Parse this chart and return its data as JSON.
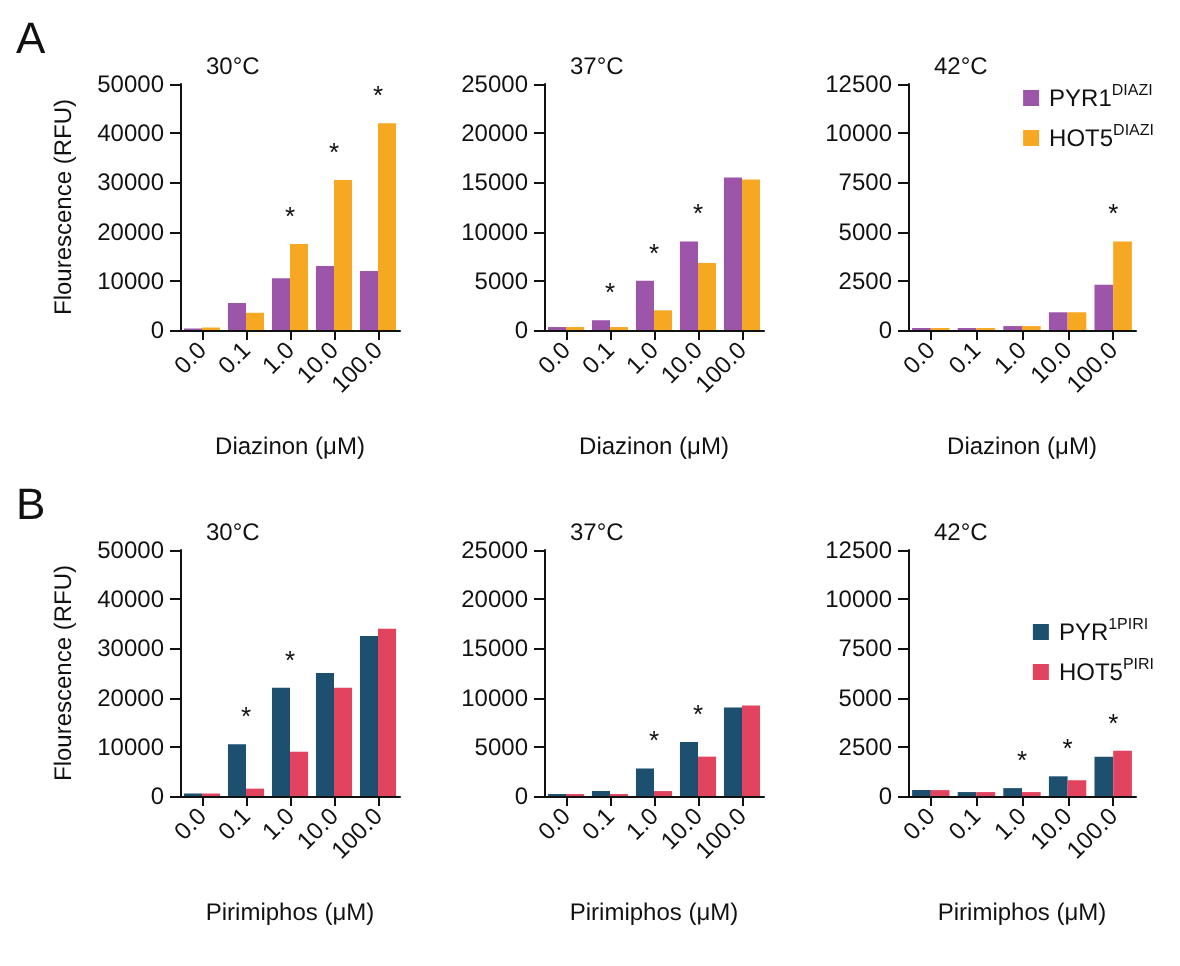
{
  "chart_data": [
    {
      "type": "bar",
      "title": "30°C",
      "annotations": [
        "A",
        {
          "text": "*",
          "x": "1.0",
          "y": 17500
        },
        {
          "text": "*",
          "x": "10.0",
          "y": 30500
        },
        {
          "text": "*",
          "x": "100.0",
          "y": 42000
        }
      ],
      "categories": [
        "0.0",
        "0.1",
        "1.0",
        "10.0",
        "100.0"
      ],
      "xlabel": "Diazinon (μM)",
      "ylabel": "Flourescence (RFU)",
      "ylim": [
        0,
        50000
      ],
      "yticks": [
        0,
        10000,
        20000,
        30000,
        40000,
        50000
      ],
      "grid": false,
      "legend": false,
      "series": [
        {
          "color": "#9c55a8",
          "values": [
            300,
            5500,
            10500,
            13000,
            12000
          ]
        },
        {
          "color": "#f7a823",
          "values": [
            500,
            3500,
            17500,
            30500,
            42000
          ]
        }
      ]
    },
    {
      "type": "bar",
      "title": "37°C",
      "annotations": [
        {
          "text": "*",
          "x": "0.1",
          "y": 1000
        },
        {
          "text": "*",
          "x": "1.0",
          "y": 5000
        },
        {
          "text": "*",
          "x": "10.0",
          "y": 9000
        }
      ],
      "categories": [
        "0.0",
        "0.1",
        "1.0",
        "10.0",
        "100.0"
      ],
      "xlabel": "Diazinon (μM)",
      "ylim": [
        0,
        25000
      ],
      "yticks": [
        0,
        5000,
        10000,
        15000,
        20000,
        25000
      ],
      "grid": false,
      "legend": false,
      "series": [
        {
          "color": "#9c55a8",
          "values": [
            300,
            1000,
            5000,
            9000,
            15500
          ]
        },
        {
          "color": "#f7a823",
          "values": [
            300,
            300,
            2000,
            6800,
            15300
          ]
        }
      ]
    },
    {
      "type": "bar",
      "title": "42°C",
      "annotations": [
        {
          "text": "*",
          "x": "100.0",
          "y": 4500
        }
      ],
      "categories": [
        "0.0",
        "0.1",
        "1.0",
        "10.0",
        "100.0"
      ],
      "xlabel": "Diazinon (μM)",
      "ylim": [
        0,
        12500
      ],
      "yticks": [
        0,
        2500,
        5000,
        7500,
        10000,
        12500
      ],
      "grid": false,
      "legend": "top right",
      "series": [
        {
          "name": "PYR1$^{DIAZI}$",
          "color": "#9c55a8",
          "values": [
            100,
            100,
            200,
            900,
            2300
          ]
        },
        {
          "name": "HOT5$^{DIAZI}$",
          "color": "#f7a823",
          "values": [
            100,
            100,
            200,
            900,
            4500
          ]
        }
      ]
    },
    {
      "type": "bar",
      "title": "30°C",
      "annotations": [
        "B",
        {
          "text": "*",
          "x": "0.1",
          "y": 10500
        },
        {
          "text": "*",
          "x": "1.0",
          "y": 22000
        }
      ],
      "categories": [
        "0.0",
        "0.1",
        "1.0",
        "10.0",
        "100.0"
      ],
      "xlabel": "Pirimiphos (μM)",
      "ylabel": "Flourescence (RFU)",
      "ylim": [
        0,
        50000
      ],
      "yticks": [
        0,
        10000,
        20000,
        30000,
        40000,
        50000
      ],
      "grid": false,
      "legend": false,
      "series": [
        {
          "color": "#1d4f6e",
          "values": [
            500,
            10500,
            22000,
            25000,
            32500
          ]
        },
        {
          "color": "#e2445f",
          "values": [
            500,
            1500,
            9000,
            22000,
            34000
          ]
        }
      ]
    },
    {
      "type": "bar",
      "title": "37°C",
      "annotations": [
        {
          "text": "*",
          "x": "1.0",
          "y": 2800
        },
        {
          "text": "*",
          "x": "10.0",
          "y": 5500
        }
      ],
      "categories": [
        "0.0",
        "0.1",
        "1.0",
        "10.0",
        "100.0"
      ],
      "xlabel": "Pirimiphos (μM)",
      "ylim": [
        0,
        25000
      ],
      "yticks": [
        0,
        5000,
        10000,
        15000,
        20000,
        25000
      ],
      "grid": false,
      "legend": false,
      "series": [
        {
          "color": "#1d4f6e",
          "values": [
            200,
            500,
            2800,
            5500,
            9000
          ]
        },
        {
          "color": "#e2445f",
          "values": [
            200,
            200,
            500,
            4000,
            9200
          ]
        }
      ]
    },
    {
      "type": "bar",
      "title": "42°C",
      "annotations": [
        {
          "text": "*",
          "x": "1.0",
          "y": 400
        },
        {
          "text": "*",
          "x": "10.0",
          "y": 1000
        },
        {
          "text": "*",
          "x": "100.0",
          "y": 2300
        }
      ],
      "categories": [
        "0.0",
        "0.1",
        "1.0",
        "10.0",
        "100.0"
      ],
      "xlabel": "Pirimiphos (μM)",
      "ylim": [
        0,
        12500
      ],
      "yticks": [
        0,
        2500,
        5000,
        7500,
        10000,
        12500
      ],
      "grid": false,
      "legend": "right",
      "series": [
        {
          "name": "PYR$^{1PIRI}$",
          "color": "#1d4f6e",
          "values": [
            300,
            200,
            400,
            1000,
            2000
          ]
        },
        {
          "name": "HOT5$^{PIRI}$",
          "color": "#e2445f",
          "values": [
            300,
            200,
            200,
            800,
            2300
          ]
        }
      ]
    }
  ]
}
